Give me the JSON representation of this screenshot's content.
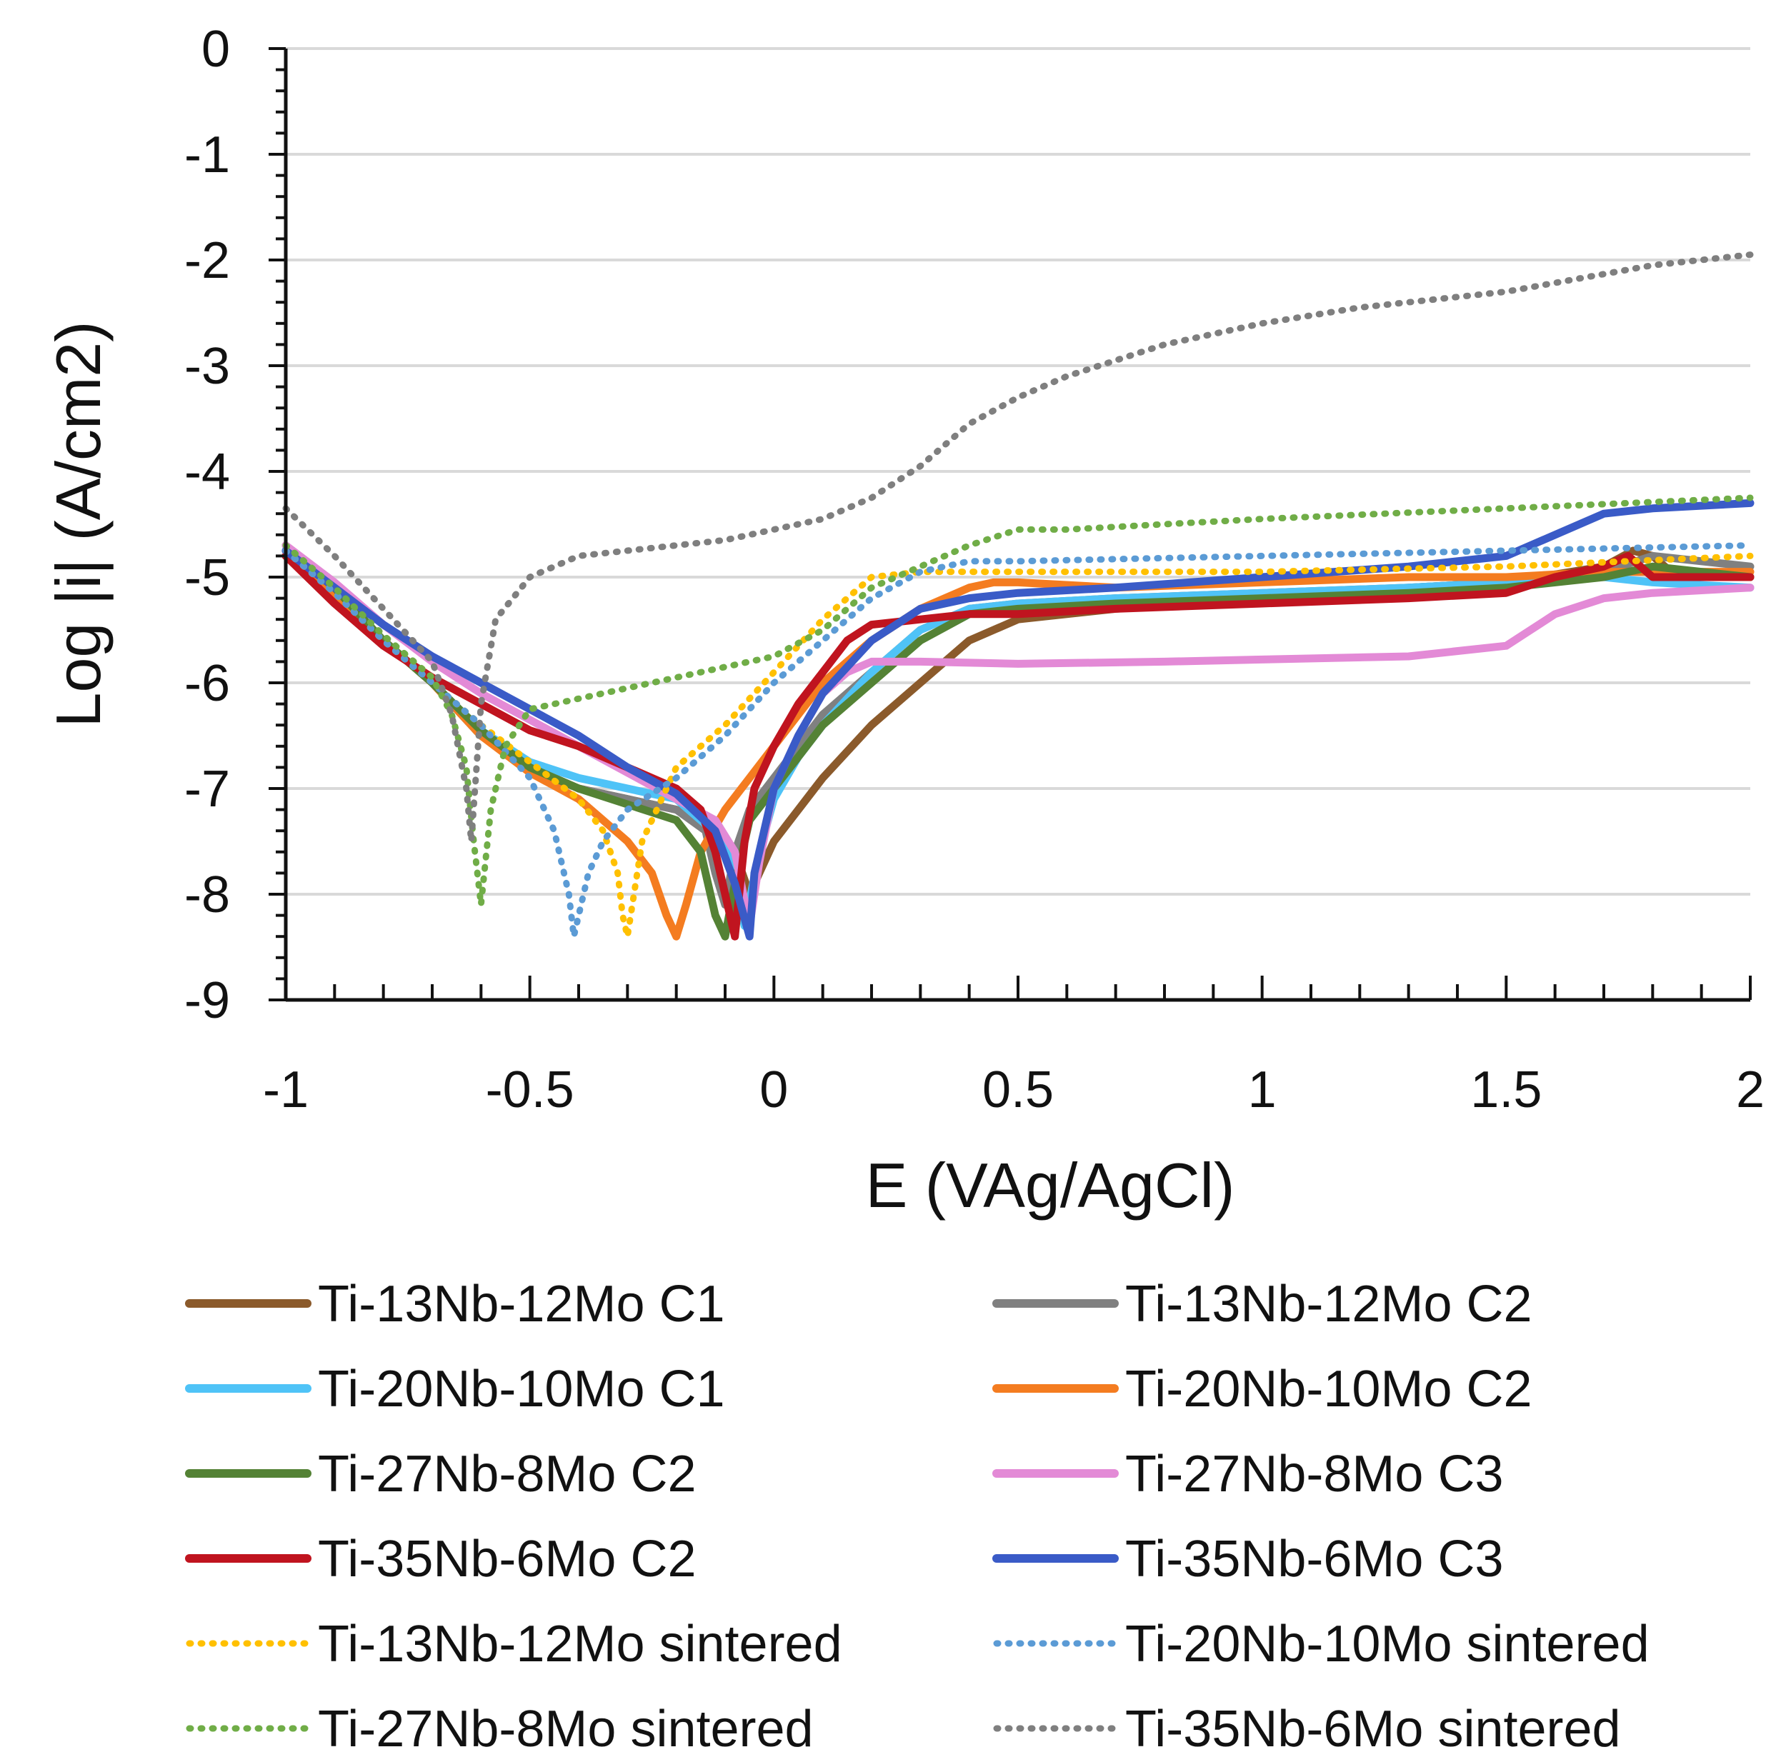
{
  "chart_data": {
    "type": "line",
    "title": "",
    "xlabel": "E (VAg/AgCl)",
    "ylabel": "Log |i| (A/cm2)",
    "xlim": [
      -1,
      2
    ],
    "ylim": [
      -9,
      0
    ],
    "xticks": [
      -1,
      -0.5,
      0,
      0.5,
      1,
      1.5,
      2
    ],
    "xtick_labels": [
      "-1",
      "-0.5",
      "0",
      "0.5",
      "1",
      "1.5",
      "2"
    ],
    "yticks": [
      0,
      -1,
      -2,
      -3,
      -4,
      -5,
      -6,
      -7,
      -8,
      -9
    ],
    "ytick_labels": [
      "0",
      "-1",
      "-2",
      "-3",
      "-4",
      "-5",
      "-6",
      "-7",
      "-8",
      "-9"
    ],
    "grid": "horizontal",
    "legend_position": "bottom",
    "series": [
      {
        "name": "Ti-13Nb-12Mo C1",
        "color": "#8b5a2b",
        "style": "solid",
        "x": [
          -1,
          -0.9,
          -0.8,
          -0.7,
          -0.6,
          -0.5,
          -0.4,
          -0.3,
          -0.2,
          -0.12,
          -0.08,
          -0.05,
          -0.03,
          0,
          0.05,
          0.1,
          0.2,
          0.3,
          0.4,
          0.5,
          0.7,
          1.0,
          1.3,
          1.5,
          1.7,
          1.76,
          1.8,
          1.85,
          2.0
        ],
        "y": [
          -4.8,
          -5.2,
          -5.6,
          -6.0,
          -6.5,
          -6.8,
          -7.0,
          -7.1,
          -7.2,
          -7.35,
          -7.6,
          -8.0,
          -7.8,
          -7.5,
          -7.2,
          -6.9,
          -6.4,
          -6.0,
          -5.6,
          -5.4,
          -5.3,
          -5.2,
          -5.1,
          -5.05,
          -4.9,
          -4.75,
          -4.8,
          -5.0,
          -5.0
        ]
      },
      {
        "name": "Ti-13Nb-12Mo C2",
        "color": "#808080",
        "style": "solid",
        "x": [
          -1,
          -0.9,
          -0.8,
          -0.7,
          -0.6,
          -0.5,
          -0.4,
          -0.3,
          -0.2,
          -0.14,
          -0.12,
          -0.1,
          -0.08,
          -0.05,
          0,
          0.05,
          0.1,
          0.2,
          0.3,
          0.4,
          0.5,
          0.7,
          1.0,
          1.3,
          1.5,
          1.7,
          1.8,
          2.0
        ],
        "y": [
          -4.75,
          -5.15,
          -5.6,
          -6.0,
          -6.5,
          -6.8,
          -7.0,
          -7.1,
          -7.2,
          -7.4,
          -7.8,
          -8.1,
          -7.6,
          -7.2,
          -6.9,
          -6.6,
          -6.3,
          -5.9,
          -5.5,
          -5.3,
          -5.25,
          -5.2,
          -5.15,
          -5.1,
          -5.05,
          -4.95,
          -4.8,
          -4.9
        ]
      },
      {
        "name": "Ti-20Nb-10Mo C1",
        "color": "#4fc3f7",
        "style": "solid",
        "x": [
          -1,
          -0.9,
          -0.8,
          -0.7,
          -0.6,
          -0.5,
          -0.4,
          -0.3,
          -0.2,
          -0.15,
          -0.1,
          -0.06,
          -0.03,
          0,
          0.05,
          0.1,
          0.2,
          0.3,
          0.4,
          0.5,
          0.7,
          1.0,
          1.3,
          1.5,
          1.7,
          1.8,
          2.0
        ],
        "y": [
          -4.75,
          -5.15,
          -5.6,
          -6.0,
          -6.45,
          -6.75,
          -6.9,
          -7.0,
          -7.1,
          -7.3,
          -7.5,
          -8.3,
          -7.6,
          -7.1,
          -6.7,
          -6.4,
          -5.9,
          -5.5,
          -5.3,
          -5.25,
          -5.2,
          -5.15,
          -5.1,
          -5.05,
          -5.0,
          -5.05,
          -5.1
        ]
      },
      {
        "name": "Ti-20Nb-10Mo C2",
        "color": "#f47c20",
        "style": "solid",
        "x": [
          -1,
          -0.9,
          -0.8,
          -0.7,
          -0.6,
          -0.5,
          -0.4,
          -0.35,
          -0.3,
          -0.25,
          -0.22,
          -0.2,
          -0.18,
          -0.15,
          -0.1,
          -0.05,
          0,
          0.05,
          0.1,
          0.2,
          0.3,
          0.4,
          0.45,
          0.5,
          0.7,
          1.0,
          1.3,
          1.5,
          1.7,
          1.8,
          2.0
        ],
        "y": [
          -4.8,
          -5.2,
          -5.6,
          -6.0,
          -6.5,
          -6.85,
          -7.1,
          -7.3,
          -7.5,
          -7.8,
          -8.2,
          -8.4,
          -8.1,
          -7.6,
          -7.2,
          -6.9,
          -6.6,
          -6.3,
          -6.0,
          -5.6,
          -5.3,
          -5.1,
          -5.05,
          -5.05,
          -5.1,
          -5.05,
          -5.0,
          -5.0,
          -4.95,
          -4.95,
          -4.95
        ]
      },
      {
        "name": "Ti-27Nb-8Mo C2",
        "color": "#548235",
        "style": "solid",
        "x": [
          -1,
          -0.9,
          -0.8,
          -0.7,
          -0.6,
          -0.5,
          -0.4,
          -0.3,
          -0.2,
          -0.15,
          -0.12,
          -0.1,
          -0.08,
          -0.05,
          0,
          0.05,
          0.1,
          0.2,
          0.3,
          0.4,
          0.5,
          0.7,
          1.0,
          1.3,
          1.5,
          1.7,
          1.8,
          2.0
        ],
        "y": [
          -4.7,
          -5.1,
          -5.6,
          -6.0,
          -6.45,
          -6.8,
          -7.0,
          -7.15,
          -7.3,
          -7.6,
          -8.2,
          -8.4,
          -7.9,
          -7.3,
          -7.0,
          -6.7,
          -6.4,
          -6.0,
          -5.6,
          -5.35,
          -5.3,
          -5.25,
          -5.2,
          -5.15,
          -5.1,
          -5.0,
          -4.9,
          -5.0
        ]
      },
      {
        "name": "Ti-27Nb-8Mo C3",
        "color": "#e38ad6",
        "style": "solid",
        "x": [
          -1,
          -0.9,
          -0.8,
          -0.7,
          -0.6,
          -0.5,
          -0.4,
          -0.3,
          -0.2,
          -0.12,
          -0.08,
          -0.05,
          -0.03,
          0,
          0.05,
          0.1,
          0.15,
          0.2,
          0.3,
          0.5,
          0.8,
          1.0,
          1.3,
          1.5,
          1.6,
          1.7,
          1.8,
          2.0
        ],
        "y": [
          -4.7,
          -5.05,
          -5.45,
          -5.8,
          -6.1,
          -6.35,
          -6.6,
          -6.85,
          -7.1,
          -7.3,
          -7.6,
          -8.3,
          -7.7,
          -7.0,
          -6.5,
          -6.1,
          -5.9,
          -5.8,
          -5.8,
          -5.82,
          -5.8,
          -5.78,
          -5.75,
          -5.65,
          -5.35,
          -5.2,
          -5.15,
          -5.1
        ]
      },
      {
        "name": "Ti-35Nb-6Mo C2",
        "color": "#c0141f",
        "style": "solid",
        "x": [
          -1,
          -0.9,
          -0.8,
          -0.7,
          -0.6,
          -0.5,
          -0.4,
          -0.3,
          -0.2,
          -0.15,
          -0.12,
          -0.1,
          -0.08,
          -0.06,
          -0.04,
          0,
          0.05,
          0.1,
          0.15,
          0.2,
          0.3,
          0.4,
          0.5,
          0.7,
          1.0,
          1.3,
          1.5,
          1.6,
          1.7,
          1.75,
          1.8,
          2.0
        ],
        "y": [
          -4.8,
          -5.25,
          -5.65,
          -5.95,
          -6.2,
          -6.45,
          -6.6,
          -6.8,
          -7.0,
          -7.2,
          -7.6,
          -8.0,
          -8.4,
          -7.5,
          -7.0,
          -6.6,
          -6.2,
          -5.9,
          -5.6,
          -5.45,
          -5.4,
          -5.35,
          -5.35,
          -5.3,
          -5.25,
          -5.2,
          -5.15,
          -5.0,
          -4.9,
          -4.8,
          -5.0,
          -5.0
        ]
      },
      {
        "name": "Ti-35Nb-6Mo C3",
        "color": "#3a5bc7",
        "style": "solid",
        "x": [
          -1,
          -0.9,
          -0.8,
          -0.7,
          -0.6,
          -0.5,
          -0.4,
          -0.3,
          -0.2,
          -0.12,
          -0.08,
          -0.05,
          -0.04,
          0,
          0.05,
          0.1,
          0.2,
          0.3,
          0.4,
          0.5,
          0.7,
          1.0,
          1.3,
          1.5,
          1.6,
          1.7,
          1.8,
          2.0
        ],
        "y": [
          -4.75,
          -5.1,
          -5.45,
          -5.75,
          -6.0,
          -6.25,
          -6.5,
          -6.8,
          -7.05,
          -7.4,
          -7.9,
          -8.4,
          -7.8,
          -7.0,
          -6.5,
          -6.1,
          -5.6,
          -5.3,
          -5.2,
          -5.15,
          -5.1,
          -5.0,
          -4.9,
          -4.8,
          -4.6,
          -4.4,
          -4.35,
          -4.3
        ]
      },
      {
        "name": "Ti-13Nb-12Mo sintered",
        "color": "#ffc000",
        "style": "dotted",
        "x": [
          -1,
          -0.9,
          -0.8,
          -0.7,
          -0.6,
          -0.5,
          -0.4,
          -0.35,
          -0.32,
          -0.31,
          -0.3,
          -0.27,
          -0.2,
          -0.1,
          0,
          0.1,
          0.2,
          0.3,
          0.5,
          0.8,
          1.0,
          1.5,
          2.0
        ],
        "y": [
          -4.75,
          -5.15,
          -5.6,
          -6.0,
          -6.4,
          -6.75,
          -7.1,
          -7.4,
          -7.8,
          -8.2,
          -8.4,
          -7.5,
          -6.8,
          -6.4,
          -5.9,
          -5.4,
          -5.0,
          -4.95,
          -4.95,
          -4.95,
          -4.95,
          -4.9,
          -4.8
        ]
      },
      {
        "name": "Ti-20Nb-10Mo sintered",
        "color": "#5b9bd5",
        "style": "dotted",
        "x": [
          -1,
          -0.9,
          -0.8,
          -0.7,
          -0.6,
          -0.5,
          -0.45,
          -0.42,
          -0.41,
          -0.4,
          -0.38,
          -0.35,
          -0.3,
          -0.2,
          -0.1,
          0,
          0.1,
          0.2,
          0.3,
          0.4,
          0.5,
          1.0,
          1.5,
          2.0
        ],
        "y": [
          -4.75,
          -5.15,
          -5.6,
          -6.0,
          -6.4,
          -6.9,
          -7.4,
          -8.0,
          -8.4,
          -8.2,
          -7.8,
          -7.5,
          -7.2,
          -6.9,
          -6.5,
          -6.0,
          -5.6,
          -5.2,
          -4.95,
          -4.85,
          -4.85,
          -4.8,
          -4.75,
          -4.7
        ]
      },
      {
        "name": "Ti-27Nb-8Mo sintered",
        "color": "#70ad47",
        "style": "dotted",
        "x": [
          -1,
          -0.9,
          -0.8,
          -0.7,
          -0.66,
          -0.63,
          -0.615,
          -0.6,
          -0.58,
          -0.55,
          -0.5,
          -0.4,
          -0.3,
          -0.2,
          -0.1,
          0,
          0.1,
          0.2,
          0.3,
          0.4,
          0.5,
          0.6,
          0.8,
          1.0,
          1.5,
          2.0
        ],
        "y": [
          -4.7,
          -5.1,
          -5.55,
          -5.95,
          -6.3,
          -6.8,
          -7.5,
          -8.1,
          -7.2,
          -6.6,
          -6.25,
          -6.15,
          -6.05,
          -5.95,
          -5.85,
          -5.75,
          -5.5,
          -5.1,
          -4.9,
          -4.7,
          -4.55,
          -4.55,
          -4.5,
          -4.45,
          -4.35,
          -4.25
        ]
      },
      {
        "name": "Ti-35Nb-6Mo sintered",
        "color": "#7f7f7f",
        "style": "dotted",
        "x": [
          -1,
          -0.9,
          -0.8,
          -0.7,
          -0.66,
          -0.63,
          -0.62,
          -0.6,
          -0.57,
          -0.5,
          -0.4,
          -0.3,
          -0.2,
          -0.1,
          0,
          0.1,
          0.2,
          0.3,
          0.35,
          0.4,
          0.5,
          0.6,
          0.7,
          0.8,
          1.0,
          1.2,
          1.5,
          1.8,
          2.0
        ],
        "y": [
          -4.35,
          -4.8,
          -5.3,
          -5.8,
          -6.3,
          -7.0,
          -7.5,
          -6.2,
          -5.4,
          -5.0,
          -4.8,
          -4.75,
          -4.7,
          -4.65,
          -4.55,
          -4.45,
          -4.25,
          -3.95,
          -3.75,
          -3.55,
          -3.3,
          -3.1,
          -2.95,
          -2.8,
          -2.6,
          -2.45,
          -2.3,
          -2.05,
          -1.95
        ]
      }
    ]
  }
}
